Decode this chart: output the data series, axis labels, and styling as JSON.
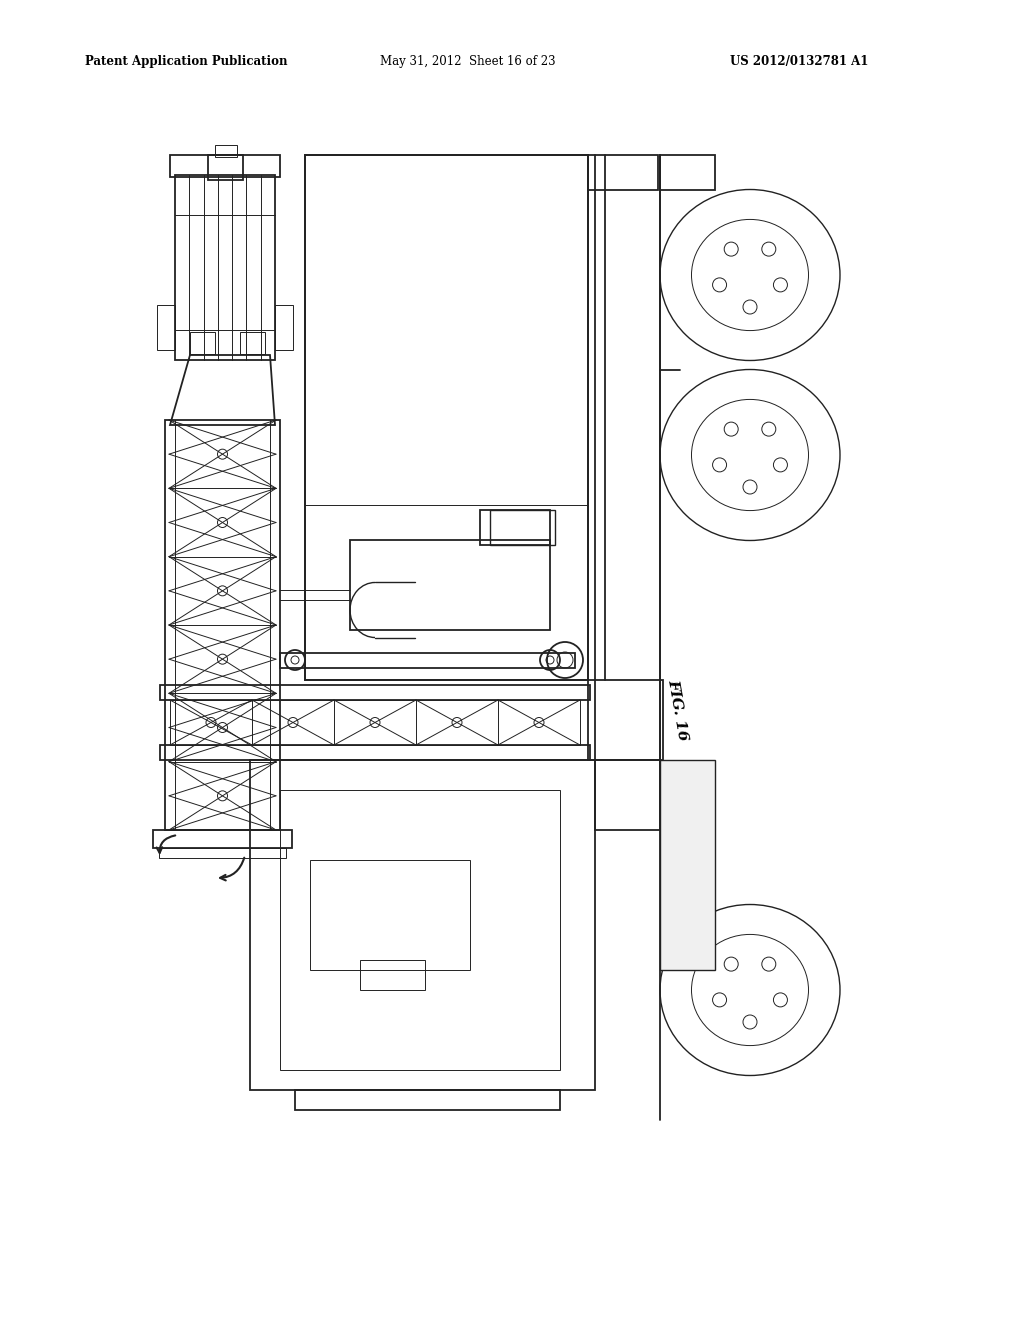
{
  "bg_color": "#ffffff",
  "text_color": "#000000",
  "line_color": "#222222",
  "header_left": "Patent Application Publication",
  "header_mid": "May 31, 2012  Sheet 16 of 23",
  "header_right": "US 2012/0132781 A1",
  "fig_label": "FIG. 16",
  "header_fontsize": 8.5,
  "figsize": [
    10.24,
    13.2
  ],
  "dpi": 100
}
